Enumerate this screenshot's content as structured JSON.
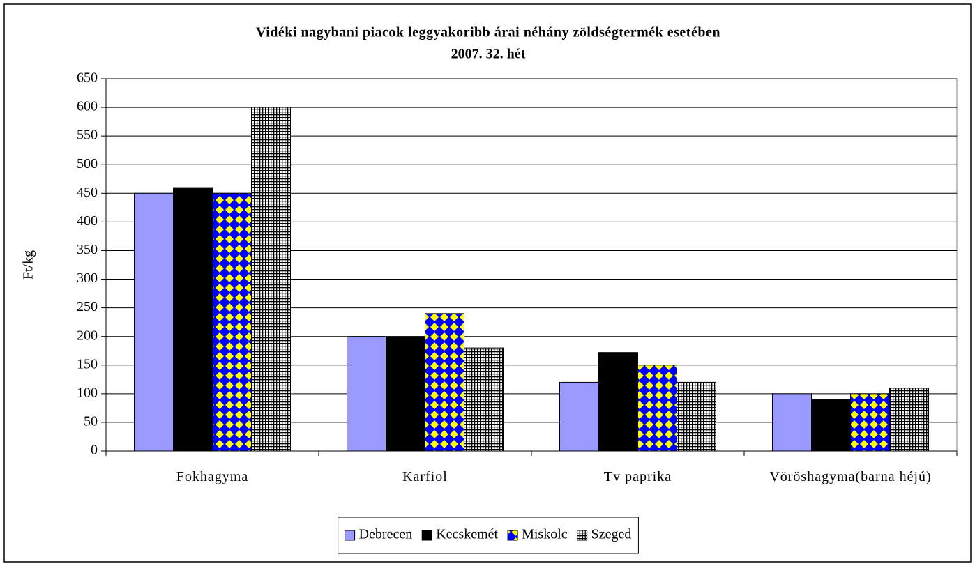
{
  "chart_data": {
    "type": "bar",
    "title": "Vidéki nagybani piacok leggyakoribb árai néhány zöldségtermék esetében",
    "subtitle": "2007. 32. hét",
    "y_label": "Ft/kg",
    "categories": [
      "Fokhagyma",
      "Karfiol",
      "Tv paprika",
      "Vöröshagyma(barna héjú)"
    ],
    "series": [
      {
        "name": "Debrecen",
        "color": "#9999ff",
        "values": [
          450,
          200,
          120,
          100
        ]
      },
      {
        "name": "Kecskemét",
        "color": "#000000",
        "values": [
          460,
          200,
          172,
          90
        ]
      },
      {
        "name": "Miskolc",
        "color": "#0000ff",
        "pattern": "diamond",
        "pattern_color": "#ffff00",
        "values": [
          450,
          240,
          150,
          100
        ]
      },
      {
        "name": "Szeged",
        "color": "#ffffff",
        "pattern": "grid",
        "pattern_color": "#000000",
        "values": [
          600,
          180,
          120,
          110
        ]
      }
    ],
    "ylim": [
      0,
      650
    ],
    "yticks": [
      0,
      50,
      100,
      150,
      200,
      250,
      300,
      350,
      400,
      450,
      500,
      550,
      600,
      650
    ],
    "grid": true,
    "legend": "bottom"
  }
}
